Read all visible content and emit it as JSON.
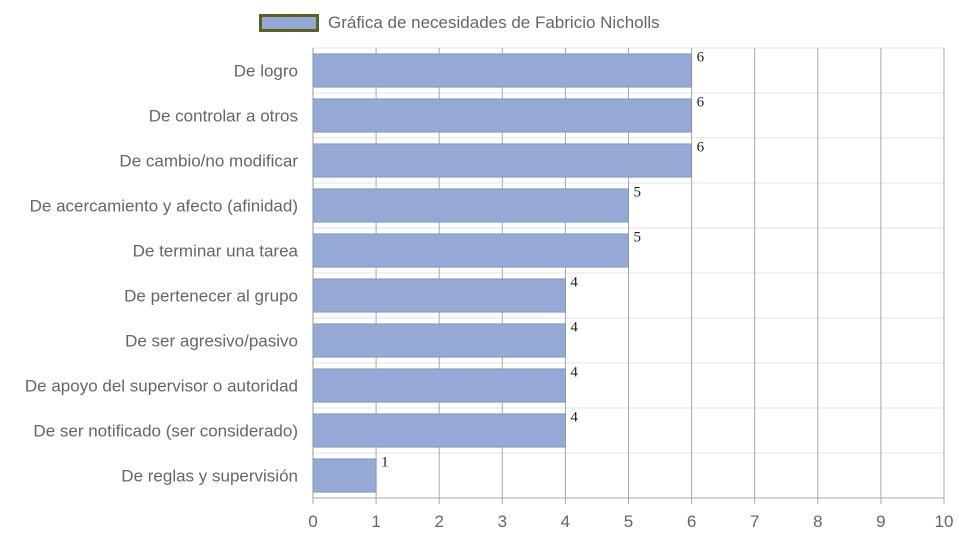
{
  "chart_data": {
    "type": "bar",
    "orientation": "horizontal",
    "legend_position": "top",
    "categories": [
      "De logro",
      "De controlar a otros",
      "De cambio/no modificar",
      "De acercamiento y afecto (afinidad)",
      "De terminar una tarea",
      "De pertenecer al grupo",
      "De ser agresivo/pasivo",
      "De apoyo del supervisor o autoridad",
      "De ser notificado (ser considerado)",
      "De reglas y supervisión"
    ],
    "series": [
      {
        "name": "Gráfica de necesidades de Fabricio Nicholls",
        "values": [
          6,
          6,
          6,
          5,
          5,
          4,
          4,
          4,
          4,
          1
        ],
        "color": "#95a9d4",
        "legend_border_color": "#5c6021"
      }
    ],
    "xlim": [
      0,
      10
    ],
    "x_ticks": [
      0,
      1,
      2,
      3,
      4,
      5,
      6,
      7,
      8,
      9,
      10
    ],
    "grid": true,
    "data_labels": true
  }
}
